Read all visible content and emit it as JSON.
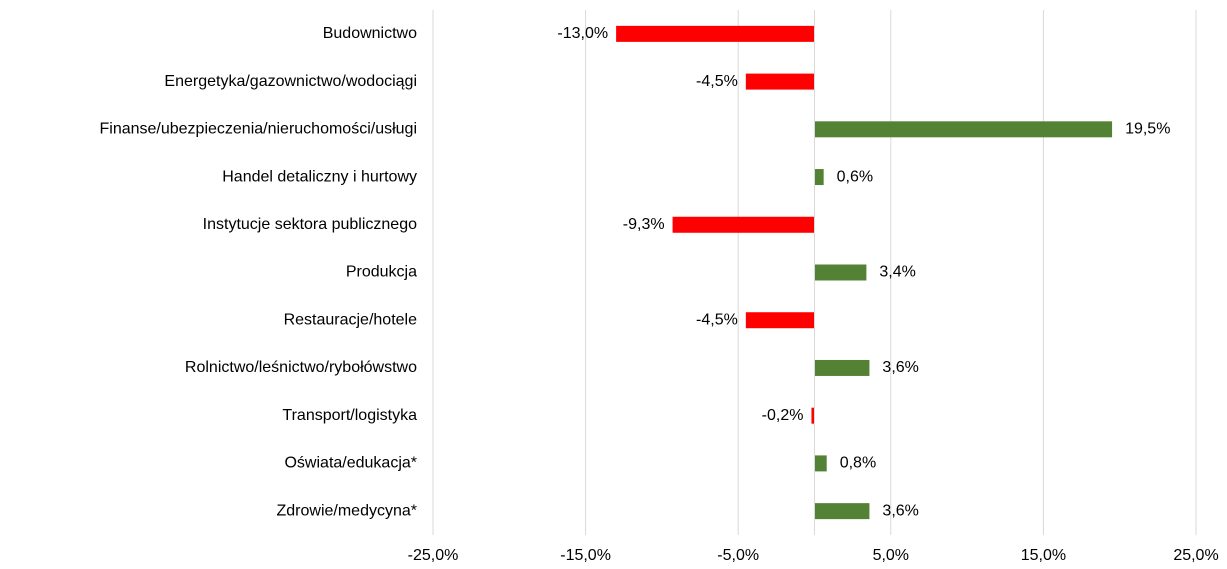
{
  "chart_data": {
    "type": "hbar",
    "categories": [
      "Budownictwo",
      "Energetyka/gazownictwo/wodociągi",
      "Finanse/ubezpieczenia/nieruchomości/usługi",
      "Handel detaliczny i hurtowy",
      "Instytucje sektora publicznego",
      "Produkcja",
      "Restauracje/hotele",
      "Rolnictwo/leśnictwo/rybołówstwo",
      "Transport/logistyka",
      "Oświata/edukacja*",
      "Zdrowie/medycyna*"
    ],
    "values": [
      -13.0,
      -4.5,
      19.5,
      0.6,
      -9.3,
      3.4,
      -4.5,
      3.6,
      -0.2,
      0.8,
      3.6
    ],
    "value_labels": [
      "-13,0%",
      "-4,5%",
      "19,5%",
      "0,6%",
      "-9,3%",
      "3,4%",
      "-4,5%",
      "3,6%",
      "-0,2%",
      "0,8%",
      "3,6%"
    ],
    "color_positive": "#548235",
    "color_negative": "#ff0000",
    "xlim": [
      -25,
      25
    ],
    "xticks": [
      {
        "value": -25,
        "label": "-25,0%"
      },
      {
        "value": -15,
        "label": "-15,0%"
      },
      {
        "value": -5,
        "label": "-5,0%"
      },
      {
        "value": 5,
        "label": "5,0%"
      },
      {
        "value": 15,
        "label": "15,0%"
      },
      {
        "value": 25,
        "label": "25,0%"
      }
    ],
    "grid": true
  }
}
